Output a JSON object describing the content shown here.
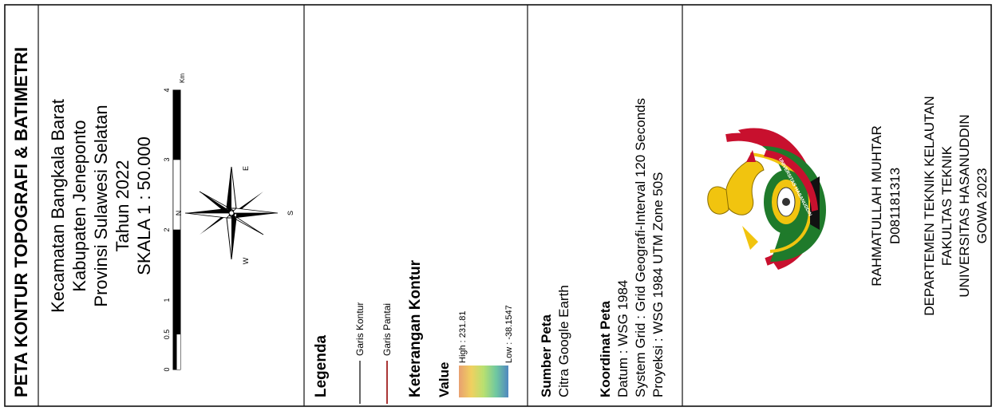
{
  "title": "PETA KONTUR TOPOGRAFI & BATIMETRI",
  "location": {
    "line1": "Kecamatan Bangkala Barat",
    "line2": "Kabupaten Jeneponto",
    "line3": "Provinsi Sulawesi Selatan",
    "line4": "Tahun 2022",
    "scale": "SKALA 1 : 50.000"
  },
  "scale_bar": {
    "ticks": [
      "0",
      "0.5",
      "1",
      "2",
      "3",
      "4"
    ],
    "unit": "Km"
  },
  "compass": {
    "n": "N",
    "e": "E",
    "s": "S",
    "w": "W"
  },
  "legend": {
    "heading": "Legenda",
    "items": [
      {
        "label": "Garis Kontur",
        "color": "#555555"
      },
      {
        "label": "Garis Pantai",
        "color": "#a02020"
      }
    ],
    "contour_heading": "Keterangan Kontur",
    "value_label": "Value",
    "high": "High : 231.81",
    "low": "Low : -38.1547",
    "ramp_colors": [
      "#e8a070",
      "#f0d060",
      "#b8e070",
      "#70c8a0",
      "#5088c0"
    ]
  },
  "source": {
    "heading": "Sumber Peta",
    "text": "Citra Google Earth"
  },
  "coords": {
    "heading": "Koordinat Peta",
    "datum": "Datum : WSG 1984",
    "grid": "System Grid : Grid Geografi-Interval 120 Seconds",
    "projection": "Proyeksi : WSG 1984 UTM Zone 50S"
  },
  "author": {
    "name": "RAHMATULLAH MUHTAR",
    "id": "D081181313"
  },
  "institution": {
    "dept": "DEPARTEMEN TEKNIK KELAUTAN",
    "faculty": "FAKULTAS TEKNIK",
    "university": "UNIVERSITAS HASANUDDIN",
    "place_year": "GOWA 2023"
  },
  "logo": {
    "banner": "UNIVERSITAS HASANUDDIN"
  }
}
